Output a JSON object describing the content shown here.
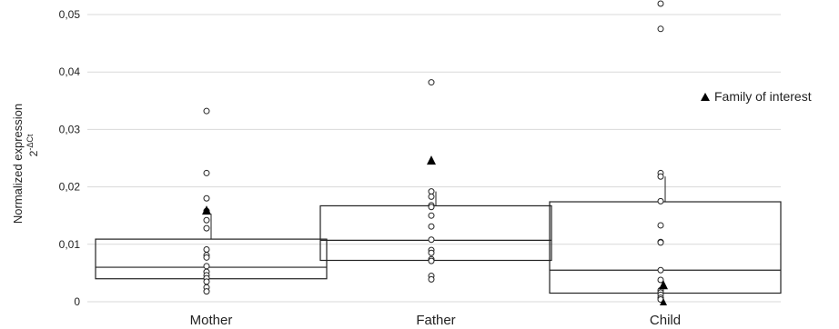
{
  "chart_data": {
    "type": "box",
    "ylabel": "Normalized expression",
    "ylabel_sub": {
      "base": "2",
      "exponent": "-ΔCt"
    },
    "ylim": [
      0,
      0.052
    ],
    "yticks": [
      {
        "value": 0,
        "label": "0"
      },
      {
        "value": 0.01,
        "label": "0,01"
      },
      {
        "value": 0.02,
        "label": "0,02"
      },
      {
        "value": 0.03,
        "label": "0,03"
      },
      {
        "value": 0.04,
        "label": "0,04"
      },
      {
        "value": 0.05,
        "label": "0,05"
      }
    ],
    "grid": true,
    "legend": {
      "label": "Family of interest",
      "marker": "triangle",
      "placement": "right"
    },
    "categories": [
      "Mother",
      "Father",
      "Child"
    ],
    "boxes": [
      {
        "q1": 0.004,
        "median": 0.006,
        "q3": 0.0109,
        "whisker_high": 0.0153
      },
      {
        "q1": 0.0072,
        "median": 0.0107,
        "q3": 0.0167,
        "whisker_high": 0.0192
      },
      {
        "q1": 0.0015,
        "median": 0.0055,
        "q3": 0.0174,
        "whisker_high": 0.0218
      }
    ],
    "points": [
      [
        0.0332,
        0.0224,
        0.018,
        0.0158,
        0.0142,
        0.0128,
        0.0091,
        0.0081,
        0.0077,
        0.0062,
        0.0052,
        0.0046,
        0.0041,
        0.0035,
        0.0025,
        0.0018
      ],
      [
        0.0382,
        0.0192,
        0.0183,
        0.0168,
        0.0165,
        0.015,
        0.0131,
        0.0108,
        0.009,
        0.0085,
        0.0074,
        0.0071,
        0.0045,
        0.0039
      ],
      [
        0.0519,
        0.0475,
        0.0224,
        0.0218,
        0.0175,
        0.0133,
        0.0104,
        0.0103,
        0.0055,
        0.0038,
        0.002,
        0.0016,
        0.0012,
        0.0007,
        0.0004
      ]
    ],
    "family_of_interest": [
      0.0158,
      0.0245,
      0.0028
    ]
  },
  "colors": {
    "box_stroke": "#222222",
    "grid": "#d9d9d9",
    "marker": "#000000"
  }
}
